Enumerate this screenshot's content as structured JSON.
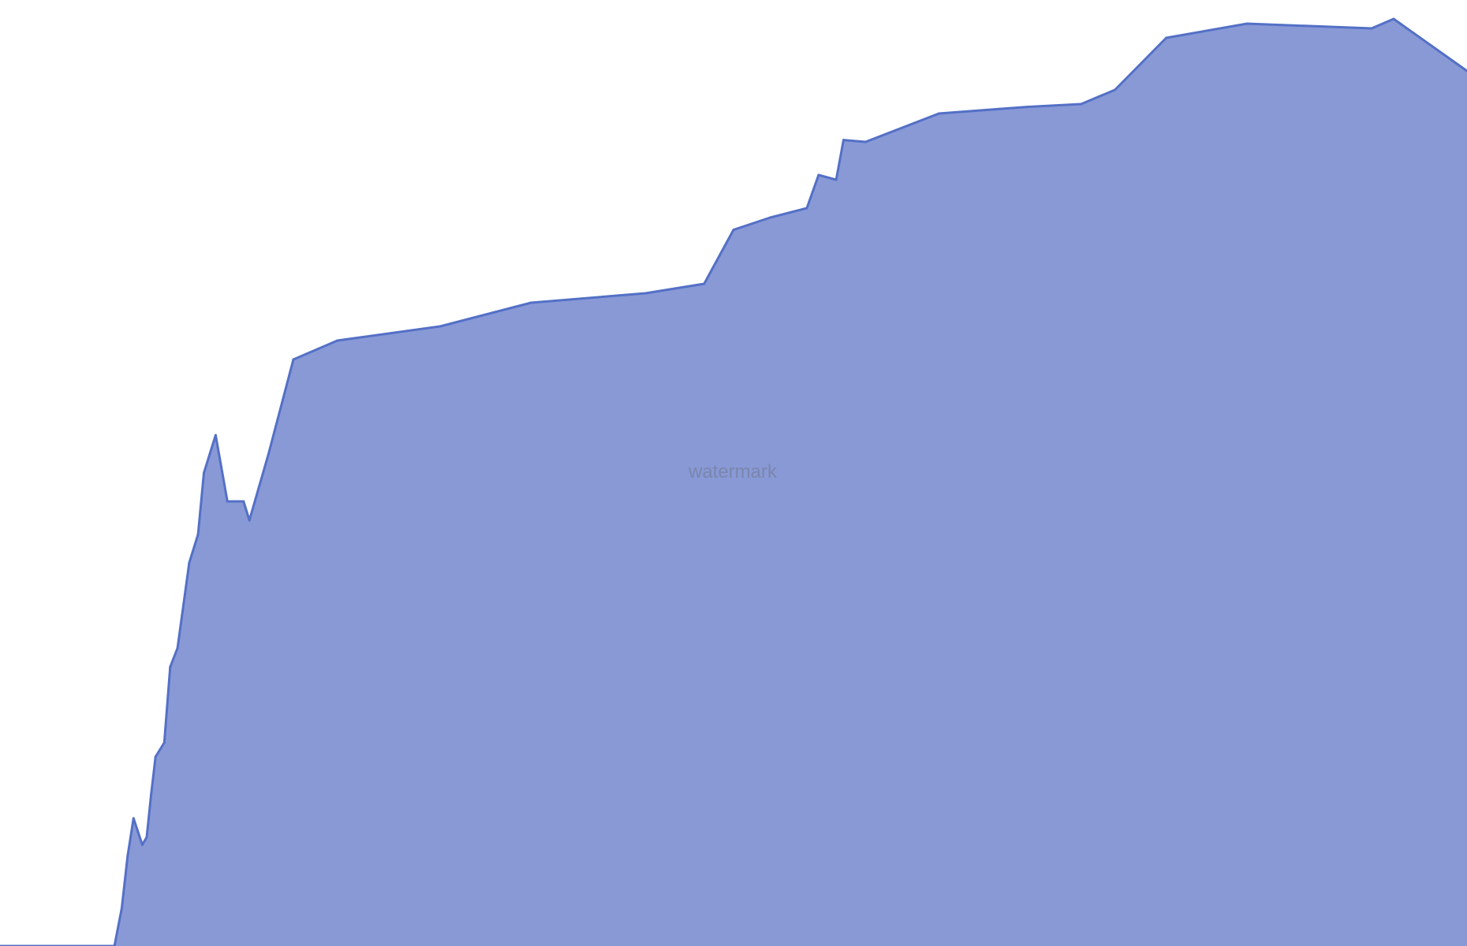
{
  "watermark": "watermark",
  "colors": {
    "area_fill": "#8899d6",
    "line": "#5470c6",
    "watermark": "#7b86ad",
    "background": "#ffffff"
  },
  "chart_data": {
    "type": "area",
    "title": "",
    "xlabel": "",
    "ylabel": "",
    "grid": false,
    "legend": "none",
    "x_range": [
      0,
      1000
    ],
    "ylim": [
      0,
      1000
    ],
    "x": [
      0,
      78,
      83,
      87,
      91,
      97,
      100,
      103,
      106,
      112,
      116,
      121,
      129,
      135,
      139,
      147,
      155,
      166,
      170,
      183,
      200,
      230,
      300,
      362,
      440,
      480,
      500,
      525,
      550,
      558,
      570,
      575,
      590,
      640,
      700,
      737,
      760,
      795,
      850,
      935,
      950,
      1000
    ],
    "values": [
      0,
      0,
      40,
      95,
      135,
      107,
      115,
      160,
      200,
      215,
      295,
      315,
      405,
      435,
      500,
      540,
      470,
      470,
      450,
      520,
      620,
      640,
      655,
      680,
      690,
      700,
      757,
      770,
      780,
      815,
      810,
      852,
      850,
      880,
      887,
      890,
      905,
      960,
      975,
      970,
      980,
      925
    ]
  }
}
